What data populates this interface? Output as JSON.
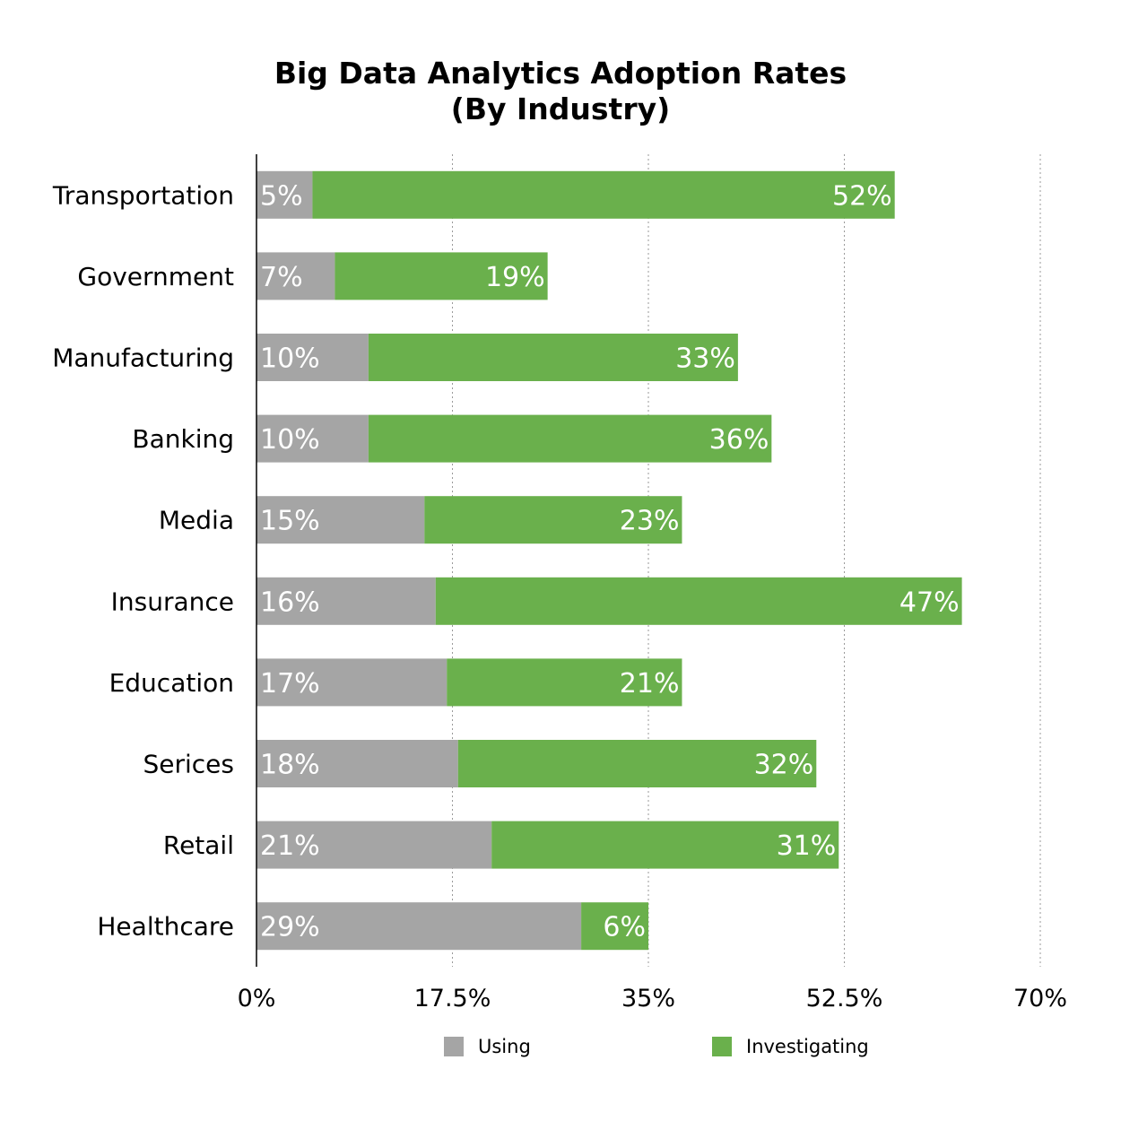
{
  "title_line1": "Big Data Analytics Adoption Rates",
  "title_line2": "(By Industry)",
  "colors": {
    "using": "#a5a5a5",
    "investigating": "#6ab04c",
    "grid": "#9a9a9a",
    "axis": "#000000"
  },
  "chart_data": {
    "type": "bar",
    "orientation": "horizontal",
    "stacked": true,
    "categories": [
      "Transportation",
      "Government",
      "Manufacturing",
      "Banking",
      "Media",
      "Insurance",
      "Education",
      "Serices",
      "Retail",
      "Healthcare"
    ],
    "series": [
      {
        "name": "Using",
        "values": [
          5,
          7,
          10,
          10,
          15,
          16,
          17,
          18,
          21,
          29
        ],
        "labels": [
          "5%",
          "7%",
          "10%",
          "10%",
          "15%",
          "16%",
          "17%",
          "18%",
          "21%",
          "29%"
        ]
      },
      {
        "name": "Investigating",
        "values": [
          52,
          19,
          33,
          36,
          23,
          47,
          21,
          32,
          31,
          6
        ],
        "labels": [
          "52%",
          "19%",
          "33%",
          "36%",
          "23%",
          "47%",
          "21%",
          "32%",
          "31%",
          "6%"
        ]
      }
    ],
    "xlim": [
      0,
      70
    ],
    "xticks": [
      0,
      17.5,
      35,
      52.5,
      70
    ],
    "xtick_labels": [
      "0%",
      "17.5%",
      "35%",
      "52.5%",
      "70%"
    ],
    "grid": true,
    "legend_position": "bottom"
  }
}
